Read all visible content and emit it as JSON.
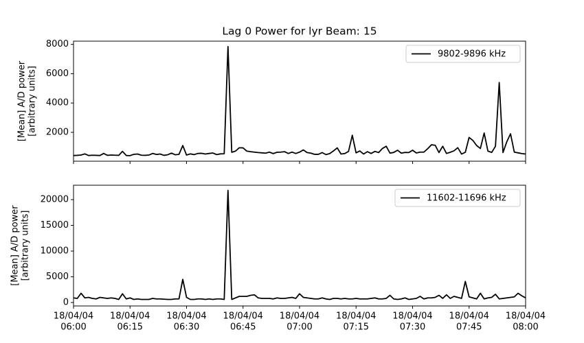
{
  "chart_data": [
    {
      "type": "line",
      "title": "Lag 0 Power for lyr Beam: 15",
      "ylabel": [
        "[Mean] A/D power",
        "[arbitrary units]"
      ],
      "legend": "upper right",
      "x": [
        "06:00",
        "06:01",
        "06:02",
        "06:03",
        "06:04",
        "06:05",
        "06:06",
        "06:07",
        "06:08",
        "06:09",
        "06:10",
        "06:11",
        "06:12",
        "06:13",
        "06:14",
        "06:15",
        "06:16",
        "06:17",
        "06:18",
        "06:19",
        "06:20",
        "06:21",
        "06:22",
        "06:23",
        "06:24",
        "06:25",
        "06:26",
        "06:27",
        "06:28",
        "06:29",
        "06:30",
        "06:31",
        "06:32",
        "06:33",
        "06:34",
        "06:35",
        "06:36",
        "06:37",
        "06:38",
        "06:39",
        "06:40",
        "06:41",
        "06:42",
        "06:43",
        "06:44",
        "06:45",
        "06:46",
        "06:47",
        "06:48",
        "06:49",
        "06:50",
        "06:51",
        "06:52",
        "06:53",
        "06:54",
        "06:55",
        "06:56",
        "06:57",
        "06:58",
        "06:59",
        "07:00",
        "07:01",
        "07:02",
        "07:03",
        "07:04",
        "07:05",
        "07:06",
        "07:07",
        "07:08",
        "07:09",
        "07:10",
        "07:11",
        "07:12",
        "07:13",
        "07:14",
        "07:15",
        "07:16",
        "07:17",
        "07:18",
        "07:19",
        "07:20",
        "07:21",
        "07:22",
        "07:23",
        "07:24",
        "07:25",
        "07:26",
        "07:27",
        "07:28",
        "07:29",
        "07:30",
        "07:31",
        "07:32",
        "07:33",
        "07:34",
        "07:35",
        "07:36",
        "07:37",
        "07:38",
        "07:39",
        "07:40",
        "07:41",
        "07:42",
        "07:43",
        "07:44",
        "07:45",
        "07:46",
        "07:47",
        "07:48",
        "07:49",
        "07:50",
        "07:51",
        "07:52",
        "07:53",
        "07:54",
        "07:55",
        "07:56",
        "07:57",
        "07:58",
        "07:59",
        "08:00"
      ],
      "series": [
        {
          "name": "9802-9896 kHz",
          "color": "#000000",
          "values": [
            420,
            430,
            450,
            530,
            420,
            440,
            430,
            420,
            560,
            430,
            450,
            440,
            430,
            700,
            420,
            410,
            500,
            520,
            440,
            430,
            450,
            560,
            490,
            520,
            430,
            470,
            580,
            470,
            500,
            1100,
            450,
            530,
            480,
            560,
            570,
            520,
            560,
            590,
            480,
            530,
            540,
            7850,
            640,
            720,
            950,
            940,
            720,
            680,
            650,
            620,
            600,
            580,
            650,
            550,
            640,
            650,
            680,
            560,
            650,
            560,
            650,
            800,
            620,
            580,
            500,
            500,
            620,
            480,
            550,
            730,
            940,
            520,
            550,
            700,
            1800,
            600,
            730,
            520,
            680,
            560,
            700,
            620,
            900,
            1050,
            580,
            630,
            780,
            580,
            630,
            620,
            780,
            590,
            650,
            650,
            880,
            1150,
            1120,
            620,
            1050,
            560,
            640,
            740,
            950,
            520,
            640,
            1650,
            1450,
            1100,
            900,
            1950,
            720,
            630,
            1050,
            5400,
            620,
            1350,
            1900,
            650,
            600,
            550,
            520
          ]
        }
      ],
      "xlim": [
        "06:00",
        "08:00"
      ],
      "ylim": [
        30,
        8220
      ],
      "yticks": [
        2000,
        4000,
        6000,
        8000
      ]
    },
    {
      "type": "line",
      "ylabel": [
        "[Mean] A/D power",
        "[arbitrary units]"
      ],
      "legend": "upper right",
      "x": [
        "06:00",
        "06:01",
        "06:02",
        "06:03",
        "06:04",
        "06:05",
        "06:06",
        "06:07",
        "06:08",
        "06:09",
        "06:10",
        "06:11",
        "06:12",
        "06:13",
        "06:14",
        "06:15",
        "06:16",
        "06:17",
        "06:18",
        "06:19",
        "06:20",
        "06:21",
        "06:22",
        "06:23",
        "06:24",
        "06:25",
        "06:26",
        "06:27",
        "06:28",
        "06:29",
        "06:30",
        "06:31",
        "06:32",
        "06:33",
        "06:34",
        "06:35",
        "06:36",
        "06:37",
        "06:38",
        "06:39",
        "06:40",
        "06:41",
        "06:42",
        "06:43",
        "06:44",
        "06:45",
        "06:46",
        "06:47",
        "06:48",
        "06:49",
        "06:50",
        "06:51",
        "06:52",
        "06:53",
        "06:54",
        "06:55",
        "06:56",
        "06:57",
        "06:58",
        "06:59",
        "07:00",
        "07:01",
        "07:02",
        "07:03",
        "07:04",
        "07:05",
        "07:06",
        "07:07",
        "07:08",
        "07:09",
        "07:10",
        "07:11",
        "07:12",
        "07:13",
        "07:14",
        "07:15",
        "07:16",
        "07:17",
        "07:18",
        "07:19",
        "07:20",
        "07:21",
        "07:22",
        "07:23",
        "07:24",
        "07:25",
        "07:26",
        "07:27",
        "07:28",
        "07:29",
        "07:30",
        "07:31",
        "07:32",
        "07:33",
        "07:34",
        "07:35",
        "07:36",
        "07:37",
        "07:38",
        "07:39",
        "07:40",
        "07:41",
        "07:42",
        "07:43",
        "07:44",
        "07:45",
        "07:46",
        "07:47",
        "07:48",
        "07:49",
        "07:50",
        "07:51",
        "07:52",
        "07:53",
        "07:54",
        "07:55",
        "07:56",
        "07:57",
        "07:58",
        "07:59",
        "08:00"
      ],
      "series": [
        {
          "name": "11602-11696 kHz",
          "color": "#000000",
          "values": [
            900,
            800,
            1800,
            900,
            1000,
            800,
            700,
            1000,
            900,
            800,
            900,
            800,
            600,
            1700,
            700,
            900,
            600,
            700,
            600,
            600,
            600,
            800,
            700,
            700,
            650,
            600,
            600,
            700,
            700,
            4500,
            1000,
            600,
            600,
            700,
            700,
            600,
            700,
            600,
            700,
            700,
            600,
            21800,
            600,
            900,
            1200,
            1200,
            1200,
            1400,
            1500,
            900,
            800,
            800,
            800,
            700,
            900,
            800,
            800,
            900,
            1000,
            800,
            1700,
            1000,
            900,
            800,
            700,
            700,
            900,
            700,
            600,
            800,
            800,
            700,
            800,
            700,
            700,
            800,
            700,
            700,
            700,
            800,
            900,
            700,
            700,
            800,
            1400,
            700,
            600,
            700,
            900,
            600,
            700,
            800,
            1200,
            700,
            900,
            900,
            1000,
            1400,
            800,
            1500,
            800,
            1200,
            1000,
            800,
            4100,
            1100,
            900,
            700,
            1800,
            700,
            900,
            1000,
            1600,
            700,
            800,
            900,
            1000,
            1100,
            1800,
            1300,
            900
          ]
        }
      ],
      "xlim": [
        "06:00",
        "08:00"
      ],
      "xticks": [
        {
          "value": "06:00",
          "label": [
            "18/04/04",
            "06:00"
          ]
        },
        {
          "value": "06:15",
          "label": [
            "18/04/04",
            "06:15"
          ]
        },
        {
          "value": "06:30",
          "label": [
            "18/04/04",
            "06:30"
          ]
        },
        {
          "value": "06:45",
          "label": [
            "18/04/04",
            "06:45"
          ]
        },
        {
          "value": "07:00",
          "label": [
            "18/04/04",
            "07:00"
          ]
        },
        {
          "value": "07:15",
          "label": [
            "18/04/04",
            "07:15"
          ]
        },
        {
          "value": "07:30",
          "label": [
            "18/04/04",
            "07:30"
          ]
        },
        {
          "value": "07:45",
          "label": [
            "18/04/04",
            "07:45"
          ]
        },
        {
          "value": "08:00",
          "label": [
            "18/04/04",
            "08:00"
          ]
        }
      ],
      "ylim": [
        -670,
        22800
      ],
      "yticks": [
        0,
        5000,
        10000,
        15000,
        20000
      ]
    }
  ]
}
